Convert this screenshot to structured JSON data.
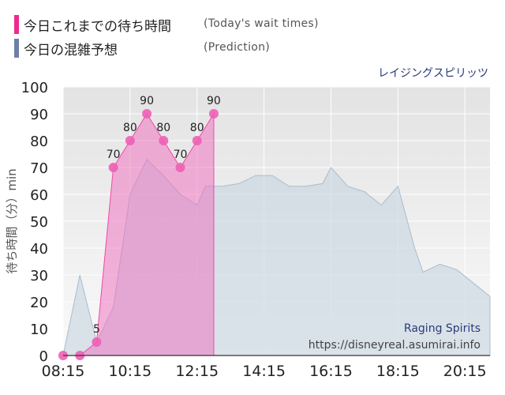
{
  "legend": {
    "today_label": "今日これまでの待ち時間",
    "today_sub": "(Today's wait times)",
    "today_color": "#ee2a8e",
    "prediction_label": "今日の混雑予想",
    "prediction_sub": "(Prediction)",
    "prediction_color": "#6e7fa8"
  },
  "attraction_name": "レイジングスピリッツ",
  "watermark": {
    "name": "Raging Spirits",
    "url": "https://disneyreal.asumirai.info"
  },
  "chart_data": {
    "type": "area",
    "ylabel": "待ち時間（分）min",
    "ylim": [
      0,
      100
    ],
    "yticks": [
      0,
      10,
      20,
      30,
      40,
      50,
      60,
      70,
      80,
      90,
      100
    ],
    "xlim": [
      "08:15",
      "21:00"
    ],
    "xticks": [
      "08:15",
      "10:15",
      "12:15",
      "14:15",
      "16:15",
      "18:15",
      "20:15"
    ],
    "grid": true,
    "series": [
      {
        "role": "prediction",
        "color": "#c7d4e0",
        "points": [
          [
            "08:15",
            0
          ],
          [
            "08:45",
            30
          ],
          [
            "09:15",
            5
          ],
          [
            "09:45",
            18
          ],
          [
            "10:15",
            60
          ],
          [
            "10:45",
            73
          ],
          [
            "11:15",
            67
          ],
          [
            "11:45",
            60
          ],
          [
            "12:15",
            56
          ],
          [
            "12:30",
            63
          ],
          [
            "13:00",
            63
          ],
          [
            "13:30",
            64
          ],
          [
            "14:00",
            67
          ],
          [
            "14:30",
            67
          ],
          [
            "15:00",
            63
          ],
          [
            "15:30",
            63
          ],
          [
            "16:00",
            64
          ],
          [
            "16:15",
            70
          ],
          [
            "16:45",
            63
          ],
          [
            "17:15",
            61
          ],
          [
            "17:45",
            56
          ],
          [
            "18:15",
            63
          ],
          [
            "18:45",
            40
          ],
          [
            "19:00",
            31
          ],
          [
            "19:30",
            34
          ],
          [
            "20:00",
            32
          ],
          [
            "20:30",
            27
          ],
          [
            "21:00",
            22
          ]
        ]
      },
      {
        "role": "today",
        "color": "#f06bbd",
        "points": [
          [
            "08:15",
            0
          ],
          [
            "08:45",
            0
          ],
          [
            "09:15",
            5
          ],
          [
            "09:45",
            70
          ],
          [
            "10:15",
            80
          ],
          [
            "10:45",
            90
          ],
          [
            "11:15",
            80
          ],
          [
            "11:45",
            70
          ],
          [
            "12:15",
            80
          ],
          [
            "12:45",
            90
          ]
        ],
        "labels": [
          "",
          "",
          "5",
          "70",
          "80",
          "90",
          "80",
          "70",
          "80",
          "90"
        ]
      }
    ]
  }
}
